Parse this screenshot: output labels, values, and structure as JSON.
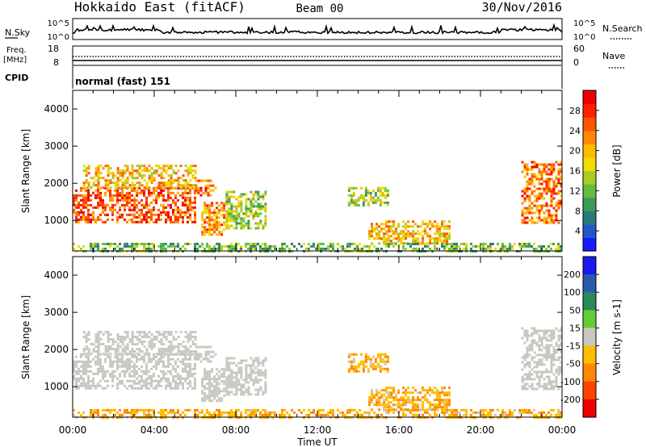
{
  "header": {
    "radar": "Hokkaido East (fitACF)",
    "beam": "Beam 00",
    "date": "30/Nov/2016"
  },
  "strip_nsky": {
    "left_label": "N.Sky",
    "left_ticks": [
      "10^5",
      "10^0"
    ],
    "right_label": "N.Search",
    "right_ticks": [
      "10^5",
      "10^0"
    ]
  },
  "strip_freq": {
    "left_label_line1": "Freq.",
    "left_label_line2": "[MHz]",
    "left_ticks": [
      "18",
      "8"
    ],
    "right_label": "Nave",
    "right_ticks": [
      "60",
      "0"
    ]
  },
  "strip_cpid": {
    "label": "CPID",
    "value": "normal (fast) 151"
  },
  "chart_data": [
    {
      "type": "heatmap",
      "name": "power",
      "ylabel": "Slant Range [km]",
      "yticks": [
        "4000",
        "3000",
        "2000",
        "1000"
      ],
      "ylim": [
        180,
        4500
      ],
      "xlim": [
        0,
        24
      ],
      "colorbar": {
        "label": "Power [dB]",
        "ticks": [
          "28",
          "24",
          "20",
          "16",
          "12",
          "8",
          "4"
        ],
        "range": [
          0,
          32
        ],
        "colors": [
          "#1a1aff",
          "#2255cc",
          "#2a7a7a",
          "#3a9a5a",
          "#66bb44",
          "#aacc22",
          "#eedd00",
          "#ffbb00",
          "#ff8800",
          "#ff5500",
          "#ff2200",
          "#ee0000"
        ]
      },
      "regions": [
        {
          "t0": 0.0,
          "t1": 6.0,
          "r0": 950,
          "r1": 1900,
          "value": 26
        },
        {
          "t0": 0.5,
          "t1": 6.0,
          "r0": 1900,
          "r1": 2500,
          "value": 20
        },
        {
          "t0": 6.0,
          "t1": 7.0,
          "r0": 1700,
          "r1": 2100,
          "value": 24
        },
        {
          "t0": 6.3,
          "t1": 7.4,
          "r0": 650,
          "r1": 1500,
          "value": 22
        },
        {
          "t0": 7.5,
          "t1": 9.5,
          "r0": 800,
          "r1": 1800,
          "value": 14
        },
        {
          "t0": 13.5,
          "t1": 15.5,
          "r0": 1400,
          "r1": 1900,
          "value": 14
        },
        {
          "t0": 14.5,
          "t1": 18.5,
          "r0": 400,
          "r1": 1000,
          "value": 20
        },
        {
          "t0": 22.0,
          "t1": 24.0,
          "r0": 950,
          "r1": 2600,
          "value": 24
        },
        {
          "t0": 0.0,
          "t1": 24.0,
          "r0": 180,
          "r1": 400,
          "value": 12
        }
      ]
    },
    {
      "type": "heatmap",
      "name": "velocity",
      "ylabel": "Slant Range [km]",
      "yticks": [
        "4000",
        "3000",
        "2000",
        "1000"
      ],
      "ylim": [
        180,
        4500
      ],
      "xlim": [
        0,
        24
      ],
      "colorbar": {
        "label": "Velocity [m s-1]",
        "ticks": [
          "200",
          "100",
          "50",
          "15",
          "-15",
          "-50",
          "-100",
          "-200"
        ],
        "colors": [
          "#1a1aee",
          "#2a5aaa",
          "#2a8a5a",
          "#66cc33",
          "#c8c8c0",
          "#ffbb00",
          "#ff8800",
          "#ff4400",
          "#ee0000"
        ]
      },
      "regions": [
        {
          "t0": 0.0,
          "t1": 6.0,
          "r0": 950,
          "r1": 1900,
          "value": 0
        },
        {
          "t0": 0.5,
          "t1": 6.0,
          "r0": 1900,
          "r1": 2500,
          "value": 0
        },
        {
          "t0": 6.0,
          "t1": 7.0,
          "r0": 1700,
          "r1": 2100,
          "value": 0
        },
        {
          "t0": 6.3,
          "t1": 7.4,
          "r0": 650,
          "r1": 1500,
          "value": 0
        },
        {
          "t0": 7.5,
          "t1": 9.5,
          "r0": 800,
          "r1": 1800,
          "value": 0
        },
        {
          "t0": 13.5,
          "t1": 15.5,
          "r0": 1400,
          "r1": 1900,
          "value": -40
        },
        {
          "t0": 14.5,
          "t1": 18.5,
          "r0": 400,
          "r1": 1000,
          "value": -40
        },
        {
          "t0": 22.0,
          "t1": 24.0,
          "r0": 950,
          "r1": 2600,
          "value": 0
        },
        {
          "t0": 0.0,
          "t1": 24.0,
          "r0": 180,
          "r1": 400,
          "value": -40
        }
      ]
    }
  ],
  "xaxis": {
    "ticks": [
      "00:00",
      "04:00",
      "08:00",
      "12:00",
      "16:00",
      "20:00",
      "00:00"
    ],
    "label": "Time UT"
  }
}
